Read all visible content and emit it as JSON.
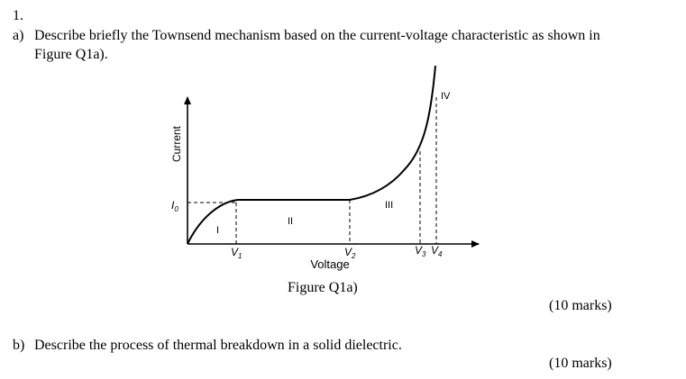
{
  "question": {
    "number": "1.",
    "part_a": {
      "label": "a)",
      "text_line1": "Describe briefly the Townsend mechanism based on the current-voltage characteristic as shown in",
      "text_line2": "Figure Q1a).",
      "marks": "(10 marks)"
    },
    "part_b": {
      "label": "b)",
      "text": "Describe the process of thermal breakdown in a solid dielectric.",
      "marks": "(10 marks)"
    }
  },
  "figure": {
    "caption": "Figure Q1a)",
    "y_axis_label": "Current",
    "x_axis_label": "Voltage",
    "i0_label": "I",
    "i0_sub": "0",
    "regions": [
      "I",
      "II",
      "III",
      "IV"
    ],
    "voltage_ticks": [
      {
        "label": "V",
        "sub": "1"
      },
      {
        "label": "V",
        "sub": "2"
      },
      {
        "label": "V",
        "sub": "3"
      },
      {
        "label": "V",
        "sub": "4"
      }
    ]
  }
}
